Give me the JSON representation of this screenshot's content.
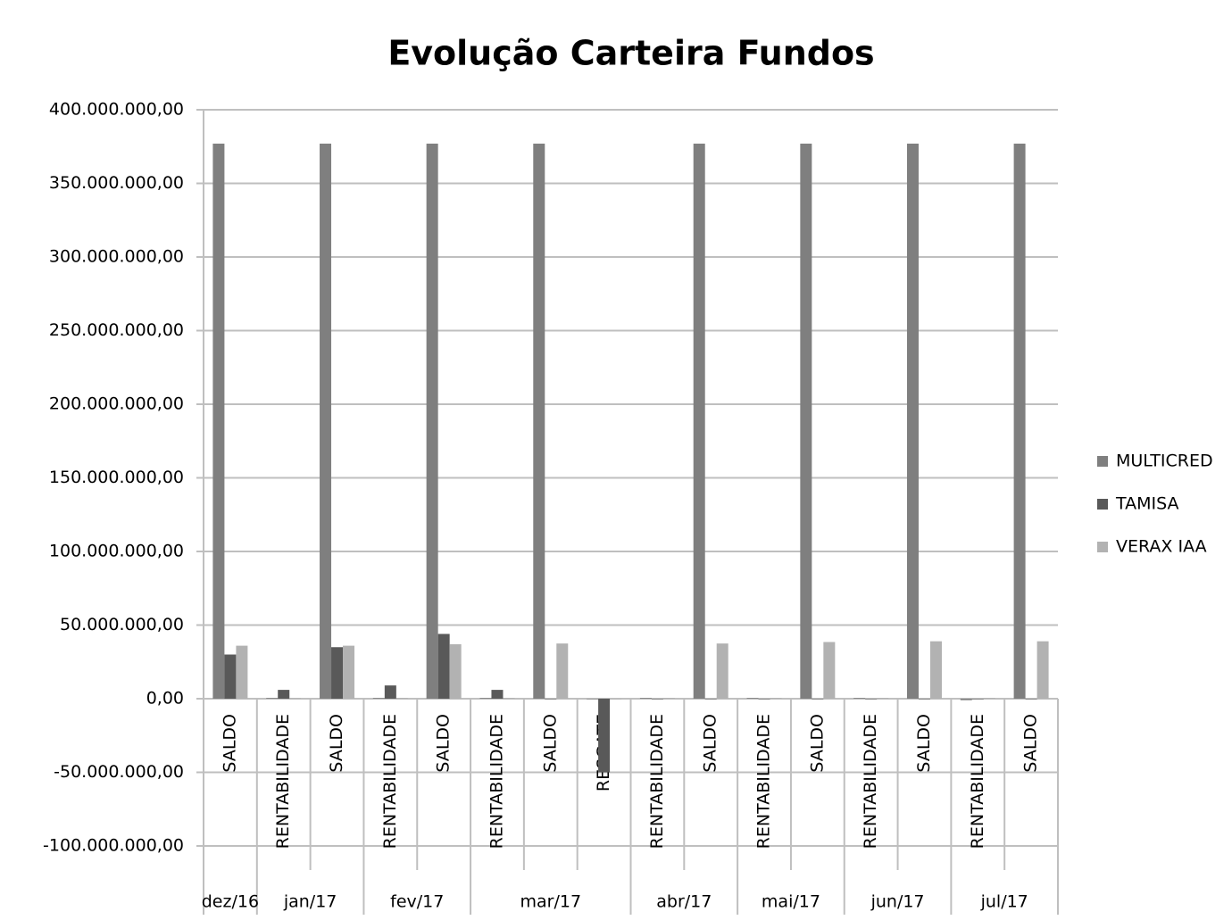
{
  "chart_data": {
    "type": "bar",
    "title": "Evolução Carteira Fundos",
    "groups": [
      {
        "label": "dez/16",
        "categories": [
          "SALDO"
        ]
      },
      {
        "label": "jan/17",
        "categories": [
          "RENTABILIDADE",
          "SALDO"
        ]
      },
      {
        "label": "fev/17",
        "categories": [
          "RENTABILIDADE",
          "SALDO"
        ]
      },
      {
        "label": "mar/17",
        "categories": [
          "RENTABILIDADE",
          "SALDO",
          "RESGATE"
        ]
      },
      {
        "label": "abr/17",
        "categories": [
          "RENTABILIDADE",
          "SALDO"
        ]
      },
      {
        "label": "mai/17",
        "categories": [
          "RENTABILIDADE",
          "SALDO"
        ]
      },
      {
        "label": "jun/17",
        "categories": [
          "RENTABILIDADE",
          "SALDO"
        ]
      },
      {
        "label": "jul/17",
        "categories": [
          "RENTABILIDADE",
          "SALDO"
        ]
      }
    ],
    "series": [
      {
        "name": "MULTICRED",
        "color": "#7f7f7f",
        "values": [
          377000000,
          500000,
          377000000,
          500000,
          377000000,
          500000,
          377000000,
          0,
          500000,
          377000000,
          500000,
          377000000,
          500000,
          377000000,
          -1000000,
          377000000
        ]
      },
      {
        "name": "TAMISA",
        "color": "#595959",
        "values": [
          30000000,
          6000000,
          35000000,
          9000000,
          44000000,
          6000000,
          0,
          -50000000,
          0,
          0,
          0,
          0,
          0,
          0,
          0,
          0
        ]
      },
      {
        "name": "VERAX IAA",
        "color": "#b2b2b2",
        "values": [
          36000000,
          300000,
          36000000,
          500000,
          37000000,
          500000,
          37500000,
          0,
          500000,
          37500000,
          500000,
          38500000,
          500000,
          39000000,
          500000,
          39000000
        ]
      }
    ],
    "ylim": [
      -100000000,
      400000000
    ],
    "yticks": [
      {
        "value": -100000000,
        "label": "-100.000.000,00"
      },
      {
        "value": -50000000,
        "label": "-50.000.000,00"
      },
      {
        "value": 0,
        "label": "0,00"
      },
      {
        "value": 50000000,
        "label": "50.000.000,00"
      },
      {
        "value": 100000000,
        "label": "100.000.000,00"
      },
      {
        "value": 150000000,
        "label": "150.000.000,00"
      },
      {
        "value": 200000000,
        "label": "200.000.000,00"
      },
      {
        "value": 250000000,
        "label": "250.000.000,00"
      },
      {
        "value": 300000000,
        "label": "300.000.000,00"
      },
      {
        "value": 350000000,
        "label": "350.000.000,00"
      },
      {
        "value": 400000000,
        "label": "400.000.000,00"
      }
    ],
    "grid": true,
    "legend": "right"
  }
}
